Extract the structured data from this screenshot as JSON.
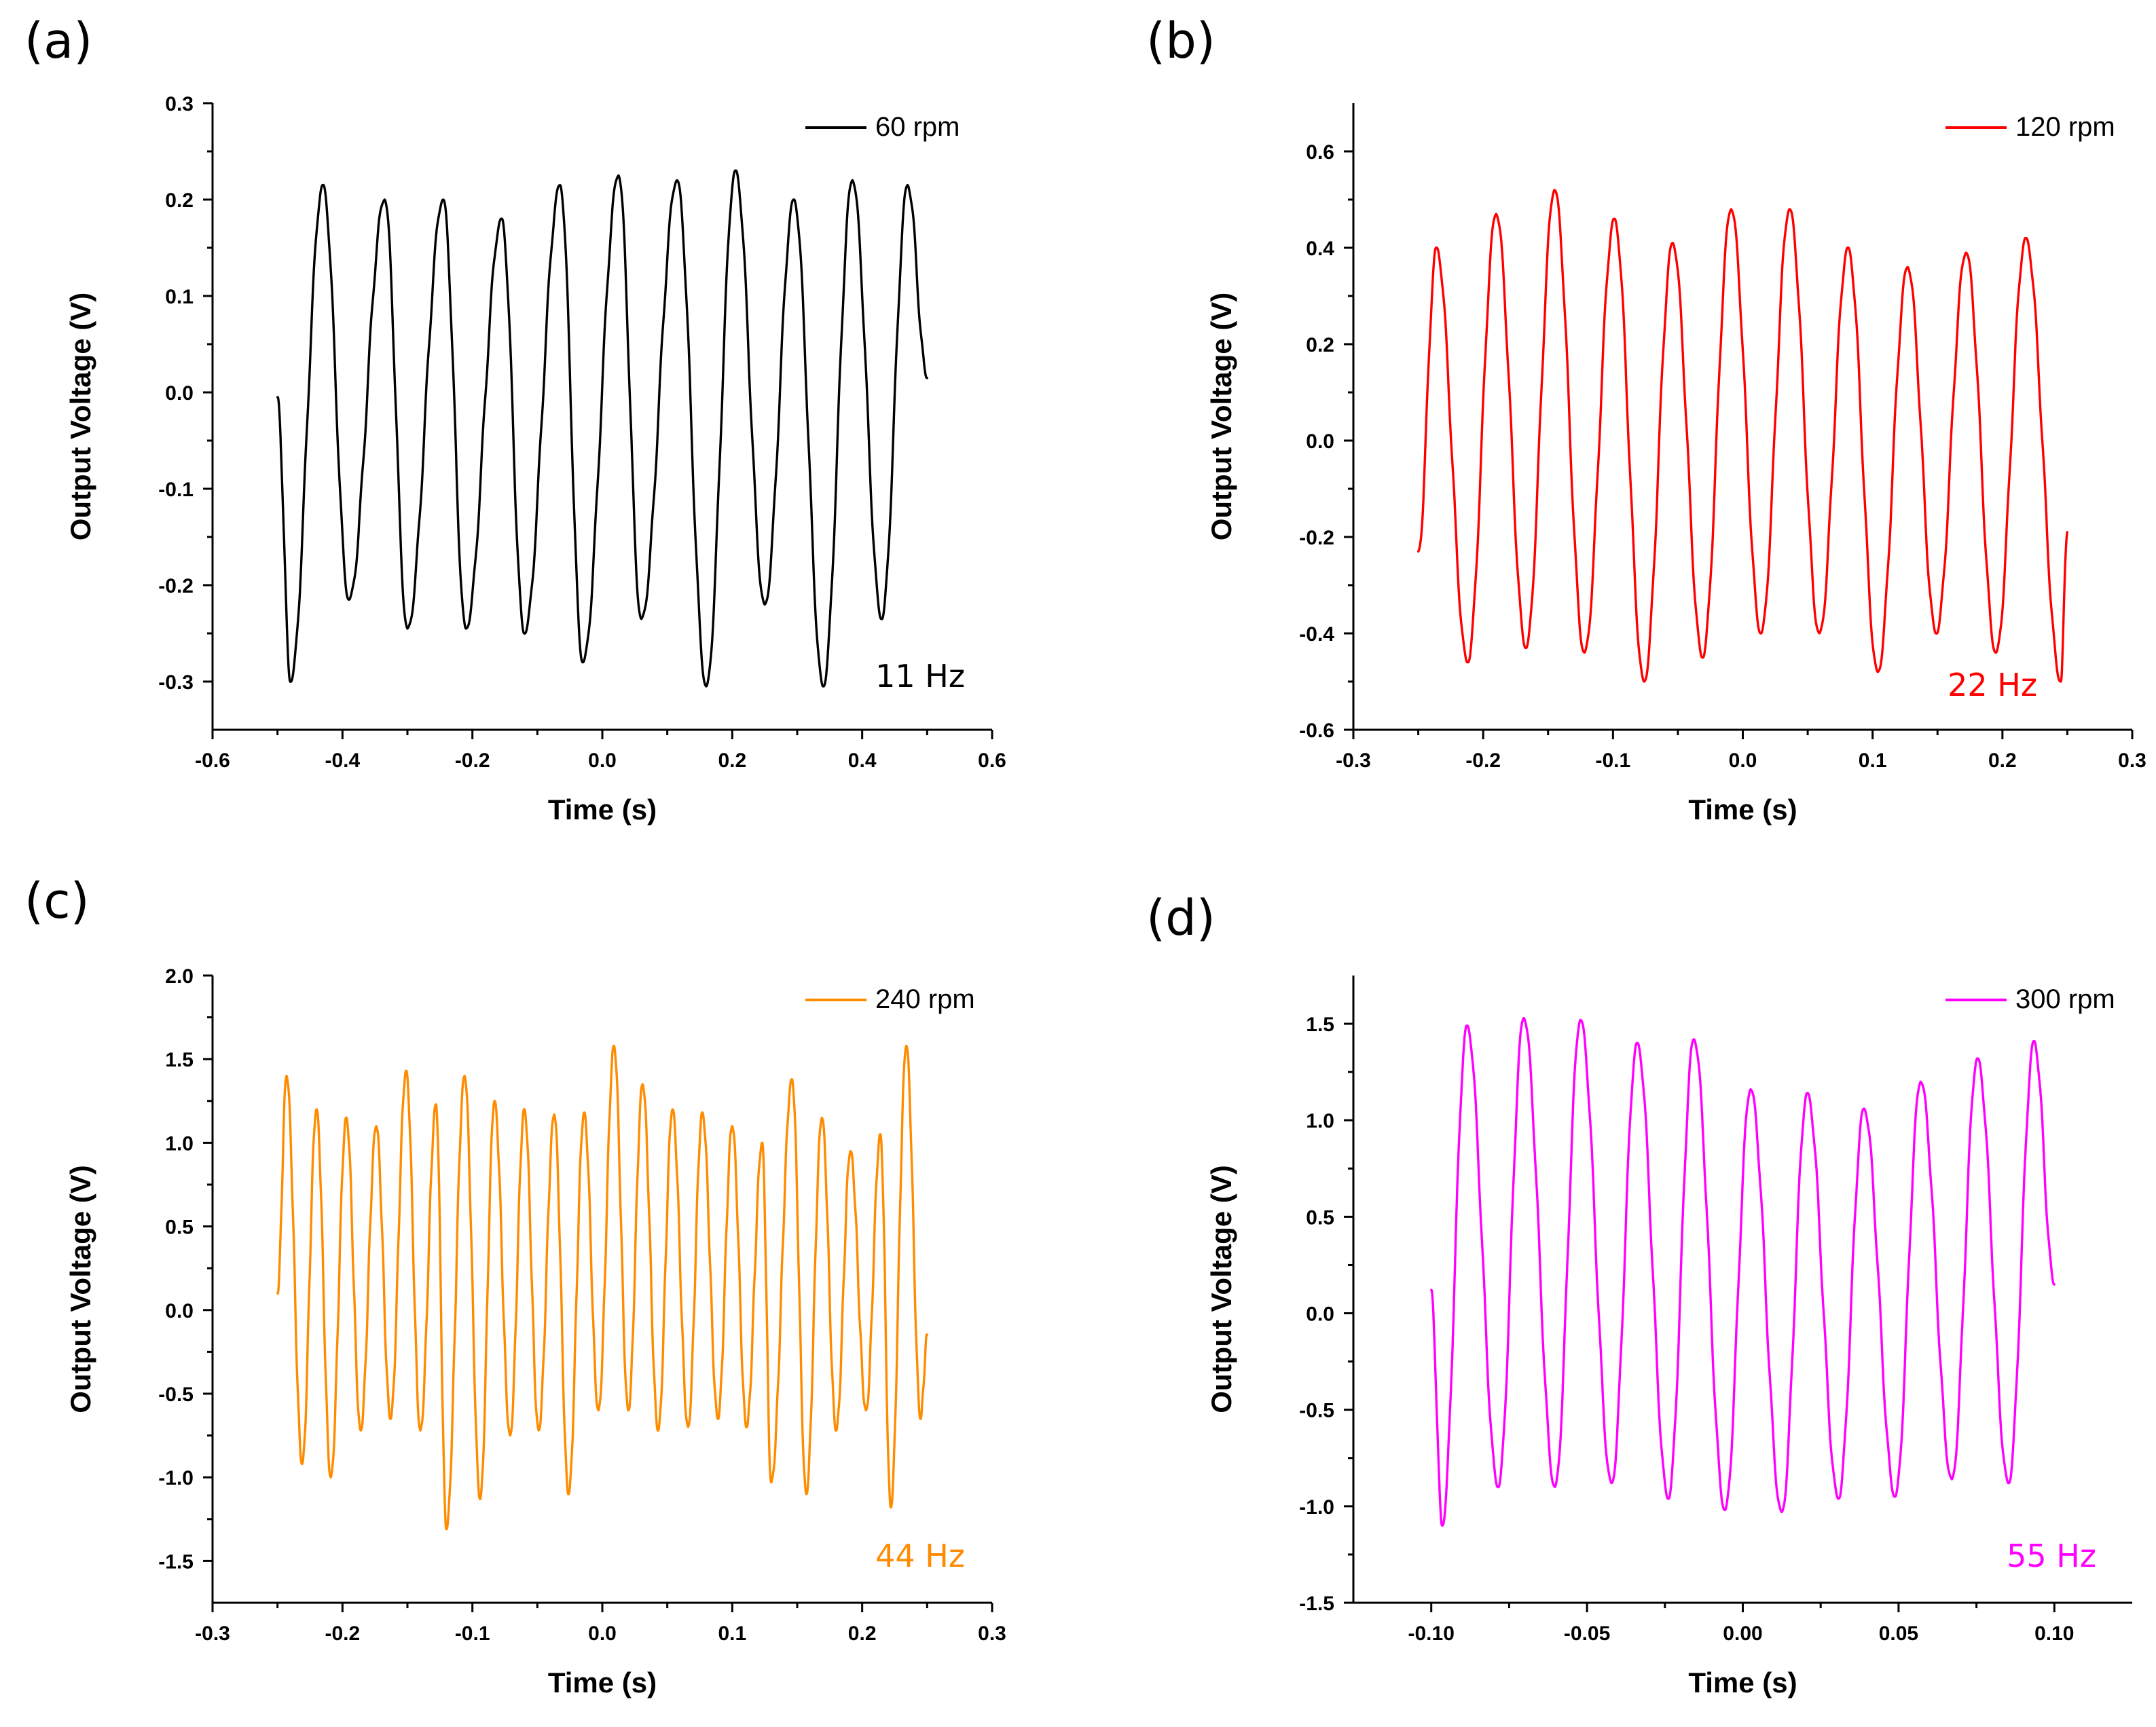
{
  "chart_data": [
    {
      "type": "line",
      "panel": "(a)",
      "xlabel": "Time (s)",
      "ylabel": "Output Voltage (V)",
      "xlim": [
        -0.6,
        0.6
      ],
      "ylim": [
        -0.35,
        0.3
      ],
      "xticks": [
        -0.6,
        -0.4,
        -0.2,
        0.0,
        0.2,
        0.4,
        0.6
      ],
      "xtick_labels": [
        "-0.6",
        "-0.4",
        "-0.2",
        "0.0",
        "0.2",
        "0.4",
        "0.6"
      ],
      "yticks": [
        -0.3,
        -0.2,
        -0.1,
        0.0,
        0.1,
        0.2,
        0.3
      ],
      "ytick_labels": [
        "-0.3",
        "-0.2",
        "-0.1",
        "0.0",
        "0.1",
        "0.2",
        "0.3"
      ],
      "annotation": "11 Hz",
      "color": "#000000",
      "series": [
        {
          "name": "60 rpm",
          "x_range": [
            -0.5,
            0.5
          ],
          "frequency_hz": 11,
          "peak_times": [
            -0.43,
            -0.335,
            -0.245,
            -0.155,
            -0.065,
            0.025,
            0.115,
            0.205,
            0.295,
            0.385,
            0.47
          ],
          "peak_values": [
            0.215,
            0.2,
            0.2,
            0.18,
            0.215,
            0.225,
            0.22,
            0.23,
            0.2,
            0.22,
            0.215
          ],
          "trough_times": [
            -0.48,
            -0.39,
            -0.3,
            -0.21,
            -0.12,
            -0.03,
            0.06,
            0.16,
            0.25,
            0.34,
            0.43
          ],
          "trough_values": [
            -0.3,
            -0.215,
            -0.245,
            -0.245,
            -0.25,
            -0.28,
            -0.235,
            -0.305,
            -0.22,
            -0.305,
            -0.235
          ],
          "start_value": -0.005,
          "end_value": 0.015
        }
      ]
    },
    {
      "type": "line",
      "panel": "(b)",
      "xlabel": "Time (s)",
      "ylabel": "Output Voltage (V)",
      "xlim": [
        -0.3,
        0.3
      ],
      "ylim": [
        -0.6,
        0.7
      ],
      "xticks": [
        -0.3,
        -0.2,
        -0.1,
        0.0,
        0.1,
        0.2,
        0.3
      ],
      "xtick_labels": [
        "-0.3",
        "-0.2",
        "-0.1",
        "0.0",
        "0.1",
        "0.2",
        "0.3"
      ],
      "yticks": [
        -0.6,
        -0.4,
        -0.2,
        0.0,
        0.2,
        0.4,
        0.6
      ],
      "ytick_labels": [
        "-0.6",
        "-0.4",
        "-0.2",
        "0.0",
        "0.2",
        "0.4",
        "0.6"
      ],
      "annotation": "22 Hz",
      "color": "#ff0000",
      "series": [
        {
          "name": "120 rpm",
          "x_range": [
            -0.25,
            0.25
          ],
          "frequency_hz": 22,
          "peak_times": [
            -0.236,
            -0.19,
            -0.145,
            -0.099,
            -0.054,
            -0.009,
            0.036,
            0.081,
            0.127,
            0.172,
            0.218
          ],
          "peak_values": [
            0.4,
            0.47,
            0.52,
            0.46,
            0.41,
            0.48,
            0.48,
            0.4,
            0.36,
            0.39,
            0.42
          ],
          "trough_times": [
            -0.212,
            -0.167,
            -0.122,
            -0.076,
            -0.031,
            0.014,
            0.059,
            0.104,
            0.149,
            0.195,
            0.245
          ],
          "trough_values": [
            -0.46,
            -0.43,
            -0.44,
            -0.5,
            -0.45,
            -0.4,
            -0.4,
            -0.48,
            -0.4,
            -0.44,
            -0.5
          ],
          "start_value": -0.23,
          "end_value": -0.19
        }
      ]
    },
    {
      "type": "line",
      "panel": "(c)",
      "xlabel": "Time (s)",
      "ylabel": "Output Voltage (V)",
      "xlim": [
        -0.3,
        0.3
      ],
      "ylim": [
        -1.75,
        2.0
      ],
      "xticks": [
        -0.3,
        -0.2,
        -0.1,
        0.0,
        0.1,
        0.2,
        0.3
      ],
      "xtick_labels": [
        "-0.3",
        "-0.2",
        "-0.1",
        "0.0",
        "0.1",
        "0.2",
        "0.3"
      ],
      "yticks": [
        -1.5,
        -1.0,
        -0.5,
        0.0,
        0.5,
        1.0,
        1.5,
        2.0
      ],
      "ytick_labels": [
        "-1.5",
        "-1.0",
        "-0.5",
        "0.0",
        "0.5",
        "1.0",
        "1.5",
        "2.0"
      ],
      "annotation": "44 Hz",
      "color": "#ff8c00",
      "series": [
        {
          "name": "240 rpm",
          "x_range": [
            -0.25,
            0.25
          ],
          "frequency_hz": 44,
          "peak_times": [
            -0.243,
            -0.22,
            -0.197,
            -0.174,
            -0.151,
            -0.128,
            -0.106,
            -0.083,
            -0.06,
            -0.037,
            -0.014,
            0.009,
            0.031,
            0.054,
            0.077,
            0.1,
            0.123,
            0.146,
            0.169,
            0.191,
            0.214,
            0.234
          ],
          "peak_values": [
            1.4,
            1.2,
            1.15,
            1.1,
            1.43,
            1.23,
            1.4,
            1.25,
            1.2,
            1.17,
            1.18,
            1.58,
            1.35,
            1.2,
            1.18,
            1.1,
            1.0,
            1.38,
            1.15,
            0.95,
            1.05,
            1.58
          ],
          "trough_times": [
            -0.231,
            -0.209,
            -0.186,
            -0.163,
            -0.14,
            -0.12,
            -0.094,
            -0.071,
            -0.049,
            -0.026,
            -0.003,
            0.02,
            0.043,
            0.066,
            0.089,
            0.111,
            0.13,
            0.157,
            0.18,
            0.203,
            0.222,
            0.245
          ],
          "trough_values": [
            -0.92,
            -1.0,
            -0.72,
            -0.65,
            -0.72,
            -1.31,
            -1.13,
            -0.75,
            -0.72,
            -1.1,
            -0.6,
            -0.6,
            -0.72,
            -0.7,
            -0.65,
            -0.7,
            -1.03,
            -1.1,
            -0.72,
            -0.6,
            -1.18,
            -0.65
          ],
          "start_value": 0.1,
          "end_value": -0.15
        }
      ]
    },
    {
      "type": "line",
      "panel": "(d)",
      "xlabel": "Time (s)",
      "ylabel": "Output Voltage (V)",
      "xlim": [
        -0.125,
        0.125
      ],
      "ylim": [
        -1.5,
        1.75
      ],
      "xticks": [
        -0.1,
        -0.05,
        0.0,
        0.05,
        0.1
      ],
      "xtick_labels": [
        "-0.10",
        "-0.05",
        "0.00",
        "0.05",
        "0.10"
      ],
      "yticks": [
        -1.5,
        -1.0,
        -0.5,
        0.0,
        0.5,
        1.0,
        1.5
      ],
      "ytick_labels": [
        "-1.5",
        "-1.0",
        "-0.5",
        "0.0",
        "0.5",
        "1.0",
        "1.5"
      ],
      "annotation": "55 Hz",
      "color": "#ff00ff",
      "series": [
        {
          "name": "300 rpm",
          "x_range": [
            -0.1,
            0.1
          ],
          "frequency_hz": 55,
          "peak_times": [
            -0.0885,
            -0.0703,
            -0.0521,
            -0.0339,
            -0.0157,
            0.0025,
            0.0207,
            0.0389,
            0.0571,
            0.0753,
            0.0935
          ],
          "peak_values": [
            1.49,
            1.53,
            1.52,
            1.4,
            1.42,
            1.16,
            1.14,
            1.06,
            1.2,
            1.32,
            1.41
          ],
          "trough_times": [
            -0.0965,
            -0.0785,
            -0.0603,
            -0.0421,
            -0.0239,
            -0.0057,
            0.0125,
            0.0307,
            0.0489,
            0.0671,
            0.0853
          ],
          "trough_values": [
            -1.1,
            -0.9,
            -0.9,
            -0.88,
            -0.96,
            -1.02,
            -1.03,
            -0.96,
            -0.95,
            -0.86,
            -0.88
          ],
          "start_value": 0.12,
          "end_value": 0.15
        }
      ]
    }
  ]
}
